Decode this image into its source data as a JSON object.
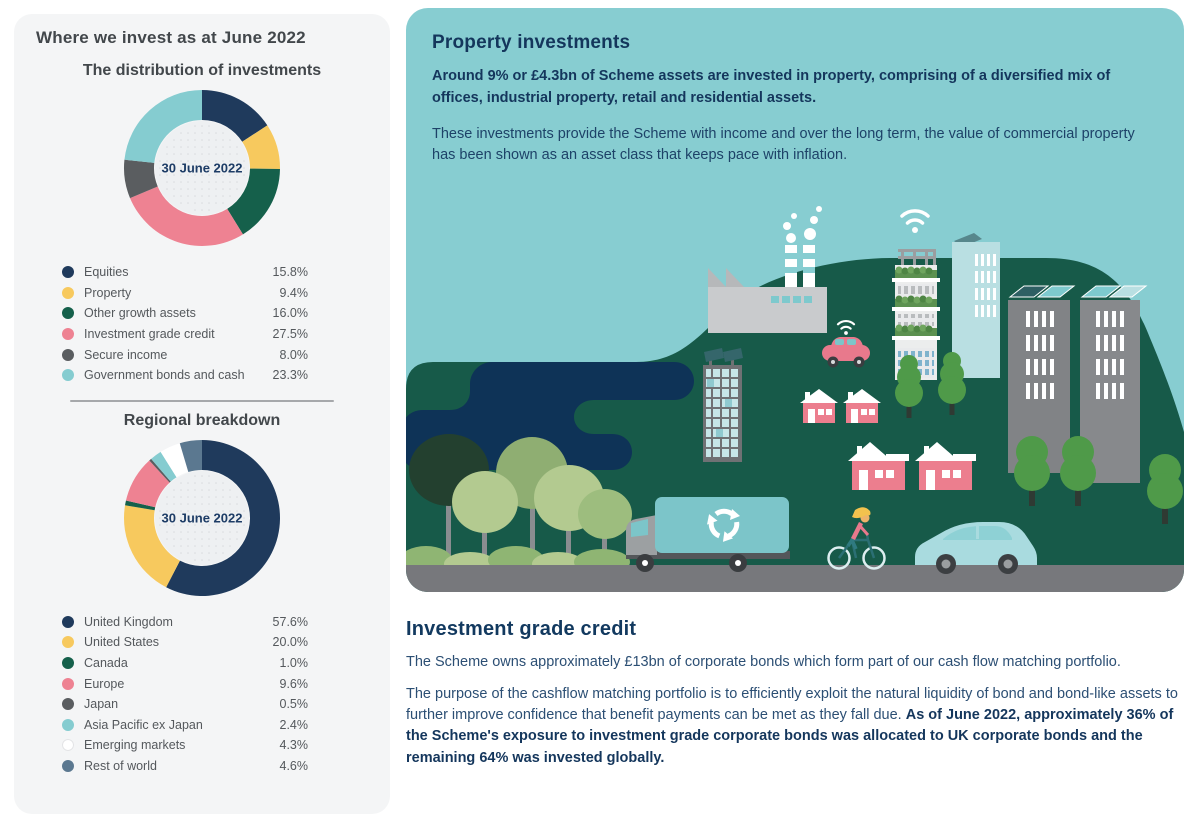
{
  "left_panel": {
    "title": "Where we invest as at June 2022",
    "distribution_title": "The distribution of investments",
    "regional_title": "Regional breakdown"
  },
  "property_panel": {
    "title": "Property investments",
    "intro_bold": "Around 9% or £4.3bn of Scheme assets are invested in property, comprising of a diversified mix of offices, industrial property, retail and residential assets.",
    "body": "These investments provide the Scheme with income and over the long term, the value of commercial property has been shown as an asset class that keeps pace with inflation."
  },
  "credit_section": {
    "title": "Investment grade credit",
    "p1": "The Scheme owns approximately £13bn of corporate bonds which form part of our cash flow matching portfolio.",
    "p2_regular": "The purpose of the cashflow matching portfolio is to efficiently exploit the natural liquidity of bond and bond-like assets to further improve confidence that benefit payments can be met as they fall due. ",
    "p2_bold": "As of June 2022, approximately 36% of the Scheme's exposure to investment grade corporate bonds was allocated to UK corporate bonds and the remaining 64% was invested globally."
  },
  "chart_data": [
    {
      "type": "pie",
      "subtype": "donut",
      "title": "The distribution of investments",
      "center_label": "30 June 2022",
      "unit": "%",
      "start_angle_deg": 0,
      "direction": "clockwise",
      "legend_position": "bottom",
      "labels": [
        "Equities",
        "Property",
        "Other growth assets",
        "Investment grade credit",
        "Secure income",
        "Government bonds and cash"
      ],
      "values": [
        15.8,
        9.4,
        16.0,
        27.5,
        8.0,
        23.3
      ],
      "colors": [
        "#1f3a5c",
        "#f7c95e",
        "#15604b",
        "#ee8292",
        "#5a5d60",
        "#85ccd0"
      ]
    },
    {
      "type": "pie",
      "subtype": "donut",
      "title": "Regional breakdown",
      "center_label": "30 June 2022",
      "unit": "%",
      "start_angle_deg": 0,
      "direction": "clockwise",
      "legend_position": "bottom",
      "labels": [
        "United Kingdom",
        "United States",
        "Canada",
        "Europe",
        "Japan",
        "Asia Pacific ex Japan",
        "Emerging markets",
        "Rest of world"
      ],
      "values": [
        57.6,
        20.0,
        1.0,
        9.6,
        0.5,
        2.4,
        4.3,
        4.6
      ],
      "colors": [
        "#1f3a5c",
        "#f7c95e",
        "#15604b",
        "#ee8292",
        "#5a5d60",
        "#85ccd0",
        "#ffffff",
        "#5b7890"
      ]
    }
  ],
  "colors": {
    "card_bg": "#f4f5f6",
    "panel_bg": "#87cdd1",
    "heading_navy": "#14365c",
    "body_navy": "#2c4f74",
    "card_text_grey": "#54585c",
    "hill_green": "#175a49",
    "lake_navy": "#0e3357",
    "road_grey": "#77787c",
    "house_pink": "#ec7e8e",
    "truck_teal": "#7cc5c9"
  }
}
